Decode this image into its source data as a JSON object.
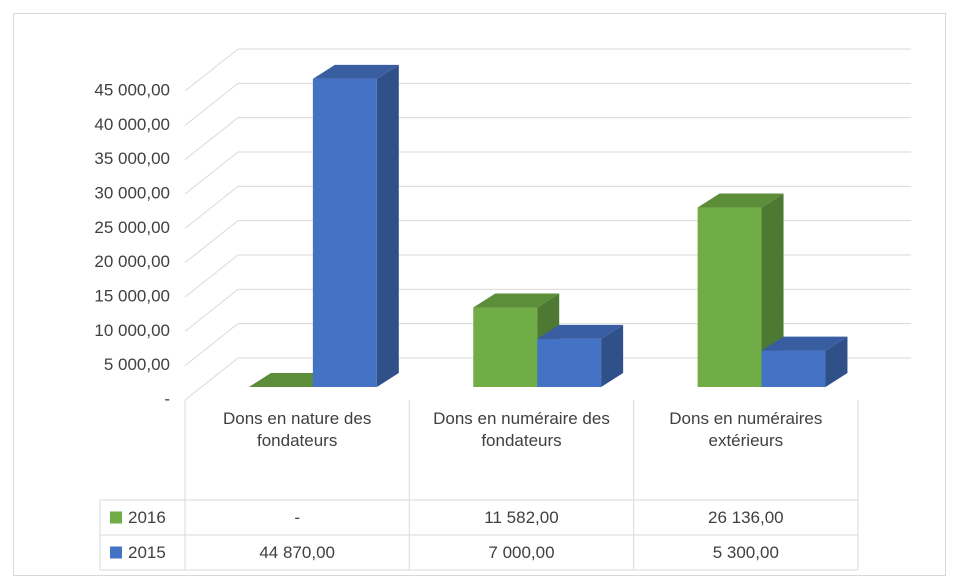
{
  "chart_data": {
    "type": "bar3d",
    "categories": [
      "Dons en nature des fondateurs",
      "Dons en numéraire des fondateurs",
      "Dons en numéraires extérieurs"
    ],
    "series": [
      {
        "name": "2016",
        "color": "#70ad47",
        "values": [
          0,
          11582,
          26136
        ],
        "value_labels": [
          "-",
          "11 582,00",
          "26 136,00"
        ]
      },
      {
        "name": "2015",
        "color": "#4472c4",
        "values": [
          44870,
          7000,
          5300
        ],
        "value_labels": [
          "44 870,00",
          "7 000,00",
          "5 300,00"
        ]
      }
    ],
    "ylim": [
      0,
      45000
    ],
    "yticks": [
      {
        "value": 0,
        "label": "-"
      },
      {
        "value": 5000,
        "label": "5 000,00"
      },
      {
        "value": 10000,
        "label": "10 000,00"
      },
      {
        "value": 15000,
        "label": "15 000,00"
      },
      {
        "value": 20000,
        "label": "20 000,00"
      },
      {
        "value": 25000,
        "label": "25 000,00"
      },
      {
        "value": 30000,
        "label": "30 000,00"
      },
      {
        "value": 35000,
        "label": "35 000,00"
      },
      {
        "value": 40000,
        "label": "40 000,00"
      },
      {
        "value": 45000,
        "label": "45 000,00"
      }
    ],
    "grid": true,
    "legend": "table"
  }
}
